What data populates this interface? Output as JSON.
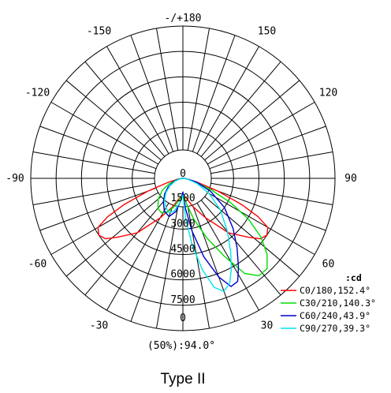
{
  "chart_data": {
    "type": "line",
    "subtype": "polar-candela-distribution",
    "unit_label": ":cd",
    "caption": "Type II",
    "beam_label": "(50%):94.0°",
    "angle_labels": [
      "-/+180",
      "-150",
      "150",
      "-120",
      "120",
      "-90",
      "90",
      "-60",
      "60",
      "-30",
      "30",
      "0"
    ],
    "angle_values": [
      180,
      -150,
      150,
      -120,
      120,
      -90,
      90,
      -60,
      60,
      -30,
      30,
      0
    ],
    "radial_ticks": [
      "0",
      "1500",
      "3000",
      "4500",
      "6000",
      "7500"
    ],
    "radial_values": [
      0,
      1500,
      3000,
      4500,
      6000,
      7500
    ],
    "rmax": 9000,
    "angular_grid_step_deg": 10,
    "grid": true,
    "legend_position": "bottom-right",
    "series": [
      {
        "name": "C0/180,152.4°",
        "color": "#ff0000",
        "points": [
          [
            0,
            1000
          ],
          [
            10,
            1200
          ],
          [
            20,
            1800
          ],
          [
            30,
            2700
          ],
          [
            40,
            4200
          ],
          [
            48,
            5200
          ],
          [
            52,
            5800
          ],
          [
            56,
            6000
          ],
          [
            60,
            5800
          ],
          [
            63,
            5000
          ],
          [
            66,
            3800
          ],
          [
            70,
            2200
          ],
          [
            75,
            900
          ],
          [
            80,
            350
          ],
          [
            90,
            80
          ],
          [
            -90,
            80
          ],
          [
            -80,
            350
          ],
          [
            -75,
            900
          ],
          [
            -70,
            2200
          ],
          [
            -66,
            3800
          ],
          [
            -63,
            5000
          ],
          [
            -60,
            5800
          ],
          [
            -56,
            6000
          ],
          [
            -52,
            5800
          ],
          [
            -48,
            5200
          ],
          [
            -40,
            4200
          ],
          [
            -30,
            2700
          ],
          [
            -20,
            1800
          ],
          [
            -10,
            1200
          ],
          [
            0,
            1000
          ]
        ]
      },
      {
        "name": "C30/210,140.3°",
        "color": "#00dd00",
        "points": [
          [
            0,
            900
          ],
          [
            8,
            1500
          ],
          [
            15,
            2500
          ],
          [
            22,
            3800
          ],
          [
            28,
            5200
          ],
          [
            33,
            6700
          ],
          [
            38,
            7300
          ],
          [
            43,
            7300
          ],
          [
            48,
            6700
          ],
          [
            53,
            5800
          ],
          [
            58,
            4600
          ],
          [
            63,
            3200
          ],
          [
            68,
            1800
          ],
          [
            74,
            800
          ],
          [
            80,
            250
          ],
          [
            90,
            60
          ],
          [
            -90,
            60
          ],
          [
            -80,
            200
          ],
          [
            -74,
            500
          ],
          [
            -68,
            900
          ],
          [
            -60,
            1400
          ],
          [
            -50,
            1900
          ],
          [
            -40,
            2300
          ],
          [
            -32,
            2400
          ],
          [
            -25,
            2200
          ],
          [
            -18,
            1800
          ],
          [
            -10,
            1300
          ],
          [
            0,
            900
          ]
        ]
      },
      {
        "name": "C60/240,43.9°",
        "color": "#0000cc",
        "points": [
          [
            0,
            800
          ],
          [
            5,
            1800
          ],
          [
            10,
            3200
          ],
          [
            15,
            4800
          ],
          [
            20,
            6200
          ],
          [
            24,
            7000
          ],
          [
            28,
            6900
          ],
          [
            32,
            6200
          ],
          [
            38,
            5200
          ],
          [
            45,
            4200
          ],
          [
            55,
            3000
          ],
          [
            65,
            1800
          ],
          [
            75,
            800
          ],
          [
            85,
            200
          ],
          [
            90,
            50
          ],
          [
            -90,
            50
          ],
          [
            -80,
            250
          ],
          [
            -70,
            600
          ],
          [
            -60,
            1000
          ],
          [
            -50,
            1400
          ],
          [
            -40,
            1800
          ],
          [
            -30,
            2200
          ],
          [
            -20,
            2400
          ],
          [
            -12,
            2000
          ],
          [
            -5,
            1300
          ],
          [
            0,
            800
          ]
        ]
      },
      {
        "name": "C90/270,39.3°",
        "color": "#00e5ee",
        "points": [
          [
            0,
            1000
          ],
          [
            4,
            2400
          ],
          [
            8,
            4000
          ],
          [
            12,
            5500
          ],
          [
            16,
            6700
          ],
          [
            20,
            7100
          ],
          [
            24,
            6800
          ],
          [
            28,
            6100
          ],
          [
            33,
            5200
          ],
          [
            40,
            4100
          ],
          [
            50,
            2900
          ],
          [
            60,
            1800
          ],
          [
            70,
            900
          ],
          [
            80,
            300
          ],
          [
            90,
            50
          ],
          [
            -90,
            50
          ],
          [
            -80,
            200
          ],
          [
            -70,
            500
          ],
          [
            -60,
            900
          ],
          [
            -50,
            1300
          ],
          [
            -40,
            1700
          ],
          [
            -30,
            2000
          ],
          [
            -22,
            2200
          ],
          [
            -15,
            2000
          ],
          [
            -8,
            1500
          ],
          [
            0,
            1000
          ]
        ]
      }
    ]
  }
}
